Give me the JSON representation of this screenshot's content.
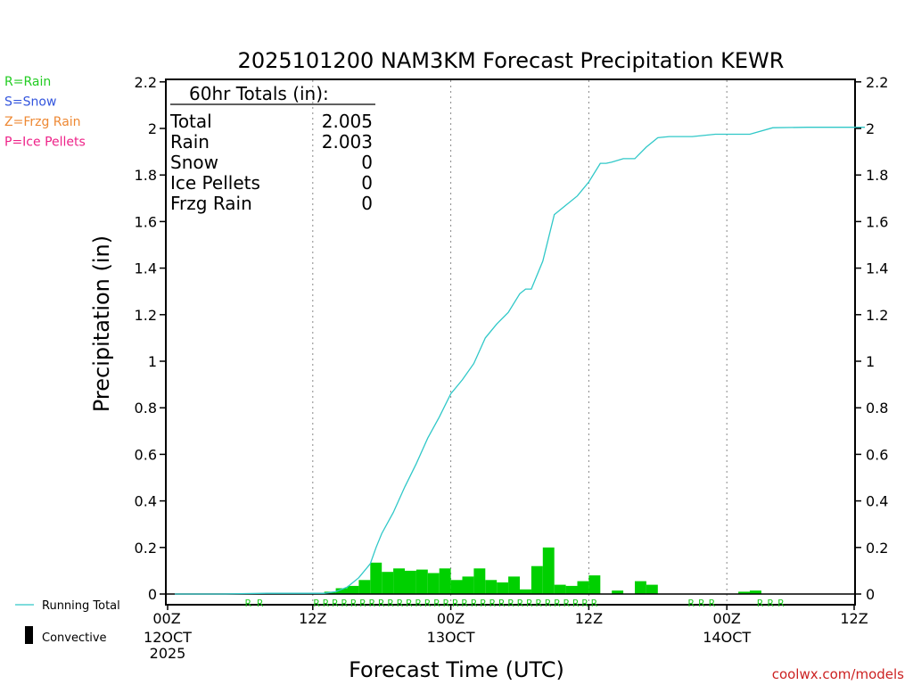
{
  "chart_data": {
    "type": "bar+line",
    "title": "2025101200 NAM3KM Forecast Precipitation KEWR",
    "xlabel": "Forecast Time (UTC)",
    "ylabel": "Precipitation (in)",
    "ylim": [
      0,
      2.2
    ],
    "xlim_hours": [
      0,
      60
    ],
    "yticks": [
      0,
      0.2,
      0.4,
      0.6,
      0.8,
      1,
      1.2,
      1.4,
      1.6,
      1.8,
      2,
      2.2
    ],
    "ytick_labels": [
      "0",
      "0.2",
      "0.4",
      "0.6",
      "0.8",
      "1",
      "1.2",
      "1.4",
      "1.6",
      "1.8",
      "2",
      "2.2"
    ],
    "xticks": [
      {
        "hour": 0,
        "label": "00Z",
        "sub": "12OCT",
        "sub2": "2025"
      },
      {
        "hour": 12,
        "label": "12Z",
        "sub": "",
        "sub2": ""
      },
      {
        "hour": 24,
        "label": "00Z",
        "sub": "13OCT",
        "sub2": ""
      },
      {
        "hour": 36,
        "label": "12Z",
        "sub": "",
        "sub2": ""
      },
      {
        "hour": 48,
        "label": "00Z",
        "sub": "14OCT",
        "sub2": ""
      },
      {
        "hour": 60,
        "label": "12Z",
        "sub": "",
        "sub2": ""
      }
    ],
    "vertical_grid_hours": [
      12,
      24,
      36,
      48
    ],
    "hourly_rain": [
      {
        "hour": 14,
        "value": 0.01
      },
      {
        "hour": 15,
        "value": 0.025
      },
      {
        "hour": 16,
        "value": 0.035
      },
      {
        "hour": 17,
        "value": 0.06
      },
      {
        "hour": 18,
        "value": 0.135
      },
      {
        "hour": 19,
        "value": 0.095
      },
      {
        "hour": 20,
        "value": 0.11
      },
      {
        "hour": 21,
        "value": 0.1
      },
      {
        "hour": 22,
        "value": 0.105
      },
      {
        "hour": 23,
        "value": 0.09
      },
      {
        "hour": 24,
        "value": 0.11
      },
      {
        "hour": 25,
        "value": 0.06
      },
      {
        "hour": 26,
        "value": 0.075
      },
      {
        "hour": 27,
        "value": 0.11
      },
      {
        "hour": 28,
        "value": 0.06
      },
      {
        "hour": 29,
        "value": 0.05
      },
      {
        "hour": 30,
        "value": 0.075
      },
      {
        "hour": 31,
        "value": 0.02
      },
      {
        "hour": 32,
        "value": 0.12
      },
      {
        "hour": 33,
        "value": 0.2
      },
      {
        "hour": 34,
        "value": 0.04
      },
      {
        "hour": 35,
        "value": 0.035
      },
      {
        "hour": 36,
        "value": 0.055
      },
      {
        "hour": 37,
        "value": 0.08
      },
      {
        "hour": 39,
        "value": 0.015
      },
      {
        "hour": 41,
        "value": 0.055
      },
      {
        "hour": 42,
        "value": 0.04
      },
      {
        "hour": 50,
        "value": 0.01
      },
      {
        "hour": 51,
        "value": 0.015
      }
    ],
    "running_total": [
      [
        0,
        0
      ],
      [
        4,
        0
      ],
      [
        8,
        0.003
      ],
      [
        12,
        0.003
      ],
      [
        13,
        0.003
      ],
      [
        14,
        0.01
      ],
      [
        15,
        0.03
      ],
      [
        16,
        0.07
      ],
      [
        17,
        0.13
      ],
      [
        17.5,
        0.2
      ],
      [
        18,
        0.26
      ],
      [
        19,
        0.35
      ],
      [
        20,
        0.46
      ],
      [
        21,
        0.56
      ],
      [
        22,
        0.67
      ],
      [
        23,
        0.76
      ],
      [
        24,
        0.86
      ],
      [
        25,
        0.92
      ],
      [
        26,
        0.99
      ],
      [
        27,
        1.1
      ],
      [
        28,
        1.16
      ],
      [
        29,
        1.21
      ],
      [
        30,
        1.29
      ],
      [
        30.5,
        1.31
      ],
      [
        31,
        1.31
      ],
      [
        32,
        1.43
      ],
      [
        33,
        1.63
      ],
      [
        34,
        1.67
      ],
      [
        35,
        1.71
      ],
      [
        36,
        1.77
      ],
      [
        37,
        1.85
      ],
      [
        37.5,
        1.85
      ],
      [
        38,
        1.855
      ],
      [
        39,
        1.87
      ],
      [
        40,
        1.87
      ],
      [
        41,
        1.92
      ],
      [
        42,
        1.96
      ],
      [
        43,
        1.965
      ],
      [
        45,
        1.965
      ],
      [
        47,
        1.975
      ],
      [
        50,
        1.975
      ],
      [
        52,
        2.003
      ],
      [
        55,
        2.005
      ],
      [
        60,
        2.005
      ]
    ],
    "rain_markers": [
      {
        "hour": 6.9,
        "text": "RR"
      },
      {
        "hour": 24.4,
        "text": "RRRRRRRRRRRRRRRRRRRRRRRRRRRRRRR"
      },
      {
        "hour": 45.8,
        "text": "RRR"
      },
      {
        "hour": 51.8,
        "text": "RRR"
      }
    ],
    "colors": {
      "rain_bar": "#00d000",
      "running_total": "#30c8c8",
      "rain_text": "#22cc22",
      "snow_text": "#3355dd",
      "frzg_text": "#ee8833",
      "ice_text": "#ee2288",
      "url_text": "#cc2222"
    }
  },
  "totals_box": {
    "header": "60hr Totals (in):",
    "rows": [
      {
        "label": "Total",
        "value": "2.005"
      },
      {
        "label": "Rain",
        "value": "2.003"
      },
      {
        "label": "Snow",
        "value": "0"
      },
      {
        "label": "Ice Pellets",
        "value": "0"
      },
      {
        "label": "Frzg Rain",
        "value": "0"
      }
    ]
  },
  "legend": {
    "types": [
      {
        "text": "R=Rain",
        "color": "#22cc22"
      },
      {
        "text": "S=Snow",
        "color": "#3355dd"
      },
      {
        "text": "Z=Frzg Rain",
        "color": "#ee8833"
      },
      {
        "text": "P=Ice Pellets",
        "color": "#ee2288"
      }
    ],
    "running_total_label": "Running Total",
    "convective_label": "Convective"
  },
  "footer": {
    "url": "coolwx.com/models"
  }
}
